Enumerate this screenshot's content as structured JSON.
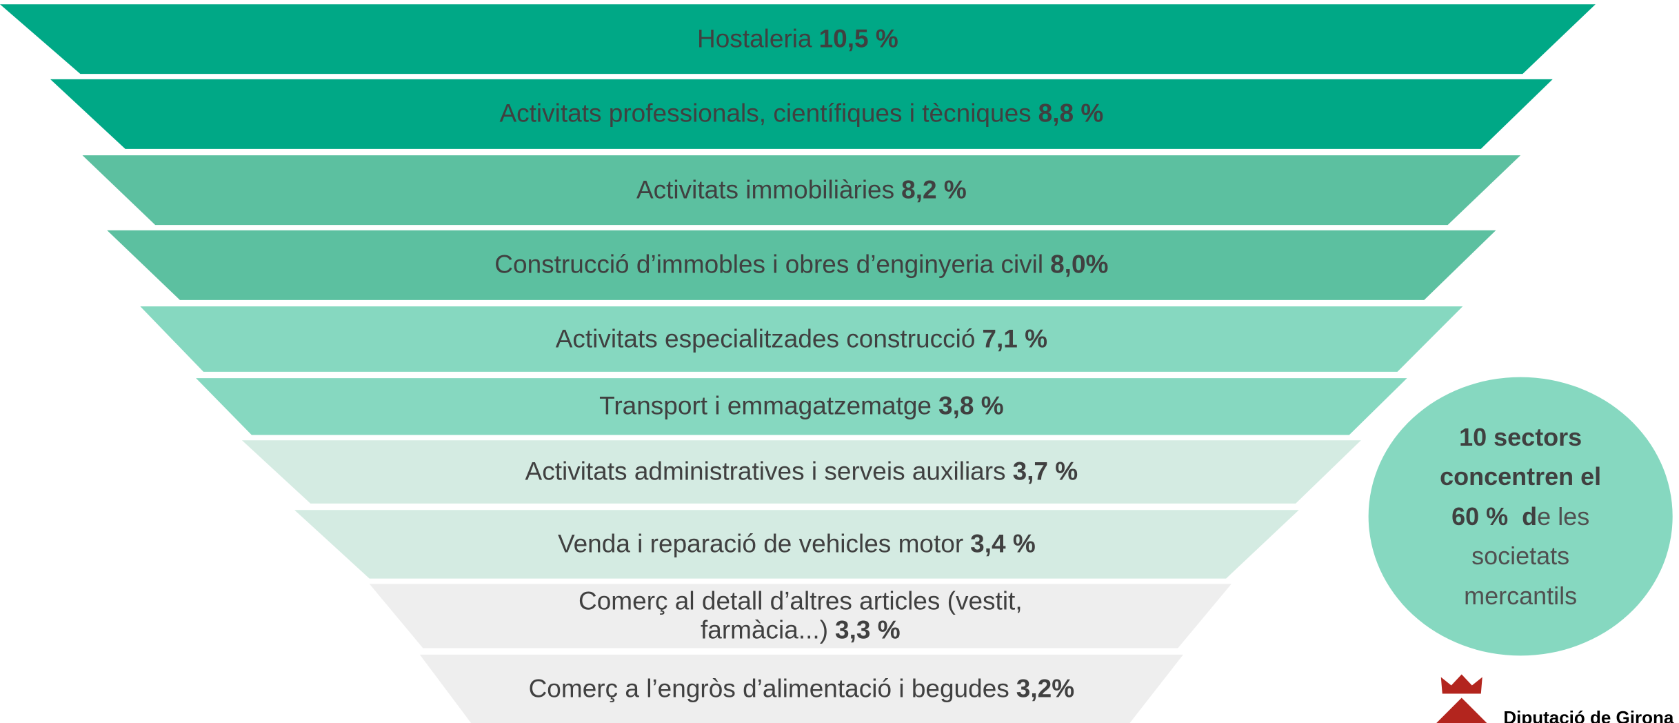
{
  "chart_data": {
    "type": "funnel",
    "categories": [
      "Hostaleria",
      "Activitats professionals, científiques i tècniques",
      "Activitats immobiliàries",
      "Construcció d’immobles i obres d’enginyeria civil",
      "Activitats especialitzades construcció",
      "Transport i emmagatzematge",
      "Activitats administratives i serveis auxiliars",
      "Venda i reparació de vehicles motor",
      "Comerç al detall d’altres articles (vestit,\nfarmàcia...)",
      "Comerç a l’engròs d’alimentació i begudes"
    ],
    "values": [
      10.5,
      8.8,
      8.2,
      8.0,
      7.1,
      3.8,
      3.7,
      3.4,
      3.3,
      3.2
    ],
    "value_labels": [
      "10,5 %",
      "8,8 %",
      "8,2 %",
      "8,0%",
      "7,1 %",
      "3,8 %",
      "3,7 %",
      "3,4 %",
      "3,3 %",
      "3,2%"
    ],
    "colors": [
      "#00a886",
      "#00a886",
      "#5cc0a0",
      "#5cc0a0",
      "#86d8c0",
      "#86d8c0",
      "#d4ebe2",
      "#d4ebe2",
      "#eeeeee",
      "#eeeeee"
    ],
    "annotation": [
      [
        {
          "text": "10 sectors",
          "bold": true
        }
      ],
      [
        {
          "text": "concentren el",
          "bold": true
        }
      ],
      [
        {
          "text": "60 %  d",
          "bold": true
        },
        {
          "text": "e les",
          "bold": false
        }
      ],
      [
        {
          "text": "societats",
          "bold": false
        }
      ],
      [
        {
          "text": "mercantils",
          "bold": false
        }
      ]
    ],
    "annotation_color": "#86d8c0",
    "logo_text": "Diputació de Girona"
  }
}
